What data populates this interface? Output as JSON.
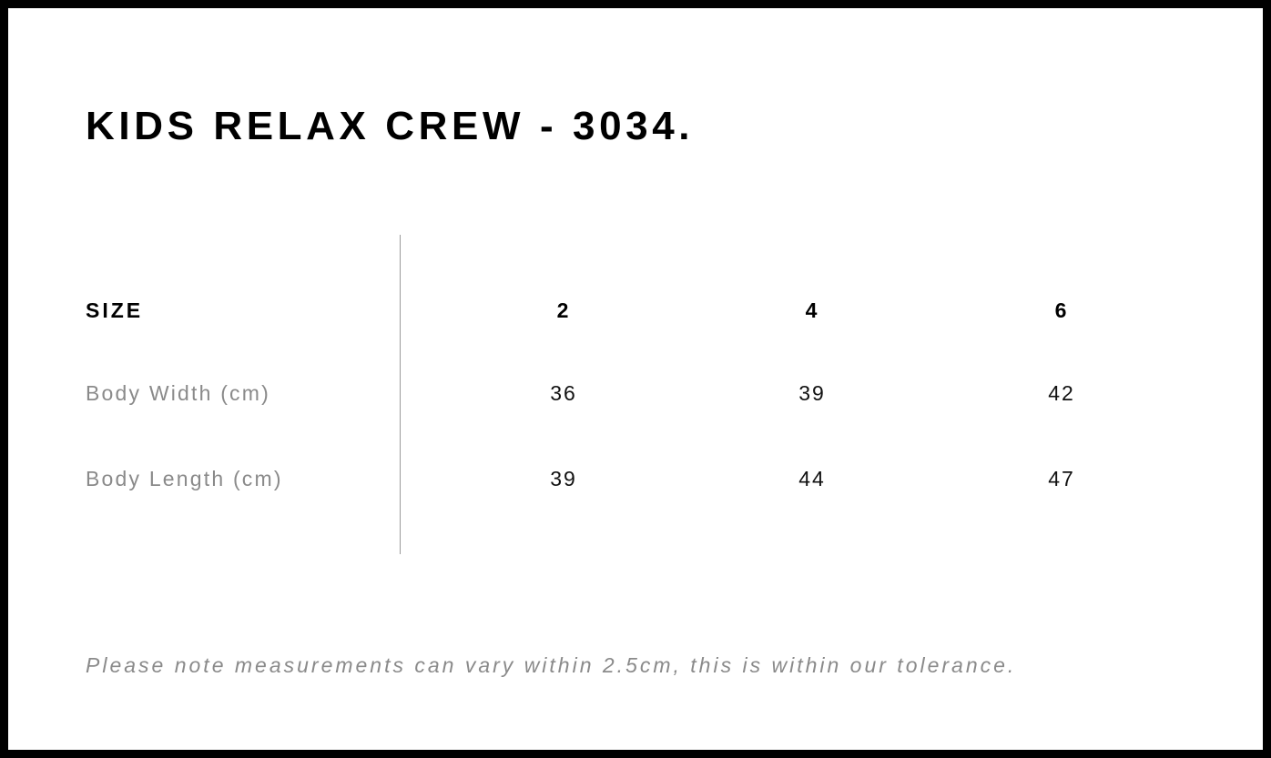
{
  "title": "KIDS RELAX CREW - 3034.",
  "table": {
    "header": {
      "label": "SIZE",
      "sizes": [
        "2",
        "4",
        "6"
      ]
    },
    "rows": [
      {
        "label": "Body Width (cm)",
        "values": [
          "36",
          "39",
          "42"
        ]
      },
      {
        "label": "Body Length (cm)",
        "values": [
          "39",
          "44",
          "47"
        ]
      }
    ]
  },
  "note": "Please note measurements can vary within 2.5cm, this is within our tolerance."
}
